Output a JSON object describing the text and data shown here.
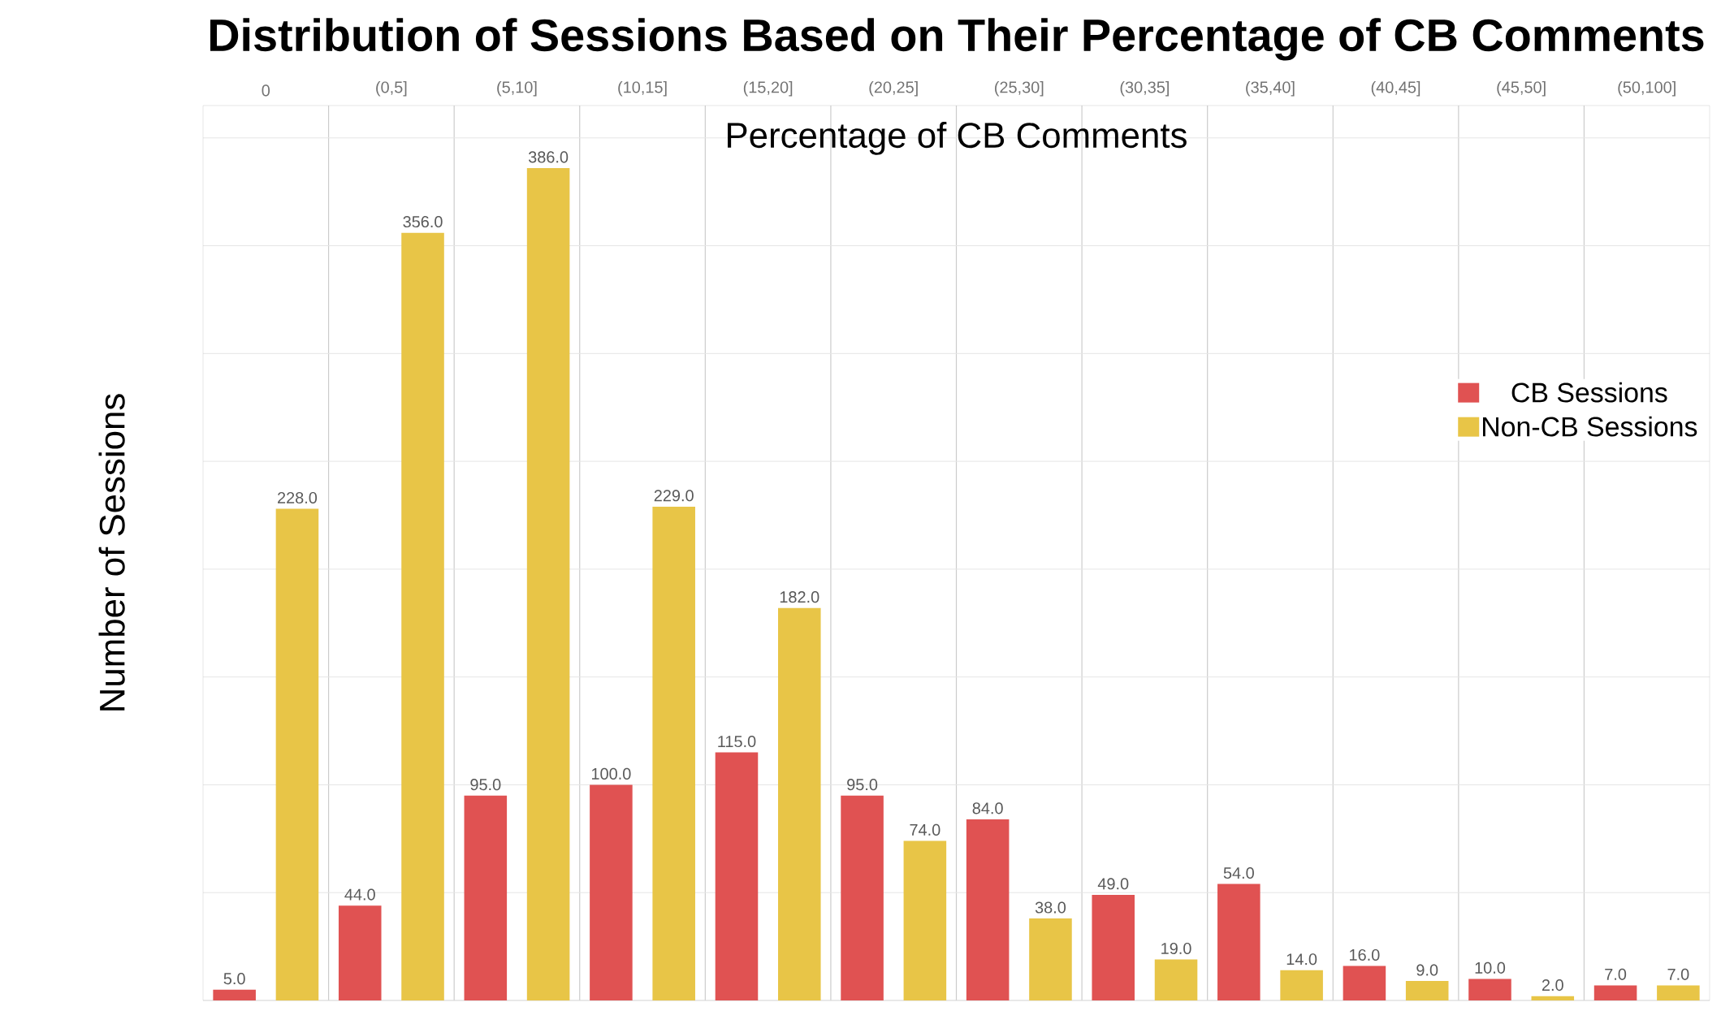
{
  "chart_data": {
    "type": "bar",
    "title": "Distribution of Sessions Based on Their Percentage of CB Comments",
    "xlabel": "Percentage of CB Comments",
    "ylabel": "Number of Sessions",
    "categories": [
      "0",
      "(0,5]",
      "(5,10]",
      "(10,15]",
      "(15,20]",
      "(20,25]",
      "(25,30]",
      "(30,35]",
      "(35,40]",
      "(40,45]",
      "(45,50]",
      "(50,100]"
    ],
    "series": [
      {
        "name": "CB Sessions",
        "color": "#e05252",
        "values": [
          5,
          44,
          95,
          100,
          115,
          95,
          84,
          49,
          54,
          16,
          10,
          7
        ],
        "value_labels": [
          "5.0",
          "44.0",
          "95.0",
          "100.0",
          "115.0",
          "95.0",
          "84.0",
          "49.0",
          "54.0",
          "16.0",
          "10.0",
          "7.0"
        ]
      },
      {
        "name": "Non-CB Sessions",
        "color": "#e8c547",
        "values": [
          228,
          356,
          386,
          229,
          182,
          74,
          38,
          19,
          14,
          9,
          2,
          7
        ],
        "value_labels": [
          "228.0",
          "356.0",
          "386.0",
          "229.0",
          "182.0",
          "74.0",
          "38.0",
          "19.0",
          "14.0",
          "9.0",
          "2.0",
          "7.0"
        ]
      }
    ],
    "ylim": [
      0,
      415
    ],
    "yticks": [
      {
        "value": 0,
        "label": null
      },
      {
        "value": 50,
        "label": null
      },
      {
        "value": 100,
        "label": null
      },
      {
        "value": 150,
        "label": null
      },
      {
        "value": 200,
        "label": null
      },
      {
        "value": 250,
        "label": null
      },
      {
        "value": 300,
        "label": null
      },
      {
        "value": 350,
        "label": null
      },
      {
        "value": 400,
        "label": null
      }
    ],
    "tick_labels": "x",
    "grid": true,
    "legend": "right"
  }
}
